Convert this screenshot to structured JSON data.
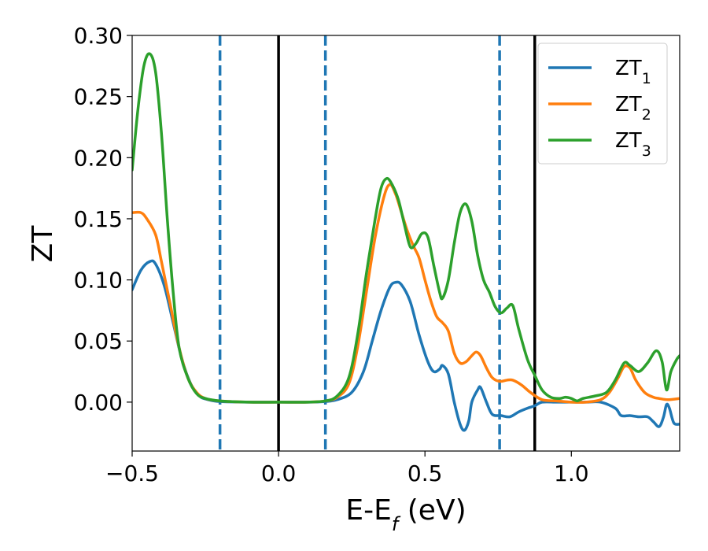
{
  "chart_data": {
    "type": "line",
    "xlabel": "E-E",
    "xlabel_sub": "f",
    "xlabel_unit": " (eV)",
    "ylabel": "ZT",
    "xlim": [
      -0.5,
      1.37
    ],
    "ylim": [
      -0.04,
      0.3
    ],
    "xticks": [
      -0.5,
      0.0,
      0.5,
      1.0
    ],
    "xtick_labels": [
      "−0.5",
      "0.0",
      "0.5",
      "1.0"
    ],
    "yticks": [
      0.0,
      0.05,
      0.1,
      0.15,
      0.2,
      0.25,
      0.3
    ],
    "ytick_labels": [
      "0.00",
      "0.05",
      "0.10",
      "0.15",
      "0.20",
      "0.25",
      "0.30"
    ],
    "grid": false,
    "legend_position": "top-right",
    "vlines_solid": [
      0.0,
      0.875
    ],
    "vlines_dashed": [
      -0.2,
      0.16,
      0.755
    ],
    "vline_colors": {
      "solid": "#000000",
      "dashed": "#1f77b4"
    },
    "series": [
      {
        "name": "ZT",
        "name_sub": "1",
        "color": "#1f77b4",
        "points": [
          [
            -0.5,
            0.092
          ],
          [
            -0.47,
            0.108
          ],
          [
            -0.44,
            0.115
          ],
          [
            -0.42,
            0.113
          ],
          [
            -0.39,
            0.095
          ],
          [
            -0.36,
            0.065
          ],
          [
            -0.33,
            0.035
          ],
          [
            -0.3,
            0.015
          ],
          [
            -0.27,
            0.005
          ],
          [
            -0.24,
            0.002
          ],
          [
            -0.2,
            0.0005
          ],
          [
            -0.1,
            0.0
          ],
          [
            0.0,
            0.0
          ],
          [
            0.1,
            0.0
          ],
          [
            0.16,
            0.0005
          ],
          [
            0.2,
            0.002
          ],
          [
            0.25,
            0.008
          ],
          [
            0.29,
            0.025
          ],
          [
            0.32,
            0.05
          ],
          [
            0.35,
            0.075
          ],
          [
            0.38,
            0.094
          ],
          [
            0.4,
            0.098
          ],
          [
            0.42,
            0.096
          ],
          [
            0.45,
            0.082
          ],
          [
            0.48,
            0.055
          ],
          [
            0.51,
            0.033
          ],
          [
            0.53,
            0.025
          ],
          [
            0.55,
            0.027
          ],
          [
            0.56,
            0.03
          ],
          [
            0.58,
            0.023
          ],
          [
            0.6,
            0.0
          ],
          [
            0.62,
            -0.018
          ],
          [
            0.635,
            -0.023
          ],
          [
            0.65,
            -0.015
          ],
          [
            0.66,
            0.0
          ],
          [
            0.68,
            0.01
          ],
          [
            0.69,
            0.012
          ],
          [
            0.71,
            0.0
          ],
          [
            0.73,
            -0.01
          ],
          [
            0.76,
            -0.011
          ],
          [
            0.79,
            -0.012
          ],
          [
            0.82,
            -0.008
          ],
          [
            0.85,
            -0.005
          ],
          [
            0.875,
            -0.003
          ],
          [
            0.9,
            0.0
          ],
          [
            0.95,
            0.0
          ],
          [
            1.0,
            0.0
          ],
          [
            1.05,
            0.0
          ],
          [
            1.1,
            0.0
          ],
          [
            1.15,
            -0.005
          ],
          [
            1.17,
            -0.011
          ],
          [
            1.2,
            -0.011
          ],
          [
            1.23,
            -0.012
          ],
          [
            1.26,
            -0.012
          ],
          [
            1.28,
            -0.016
          ],
          [
            1.3,
            -0.02
          ],
          [
            1.315,
            -0.012
          ],
          [
            1.325,
            -0.002
          ],
          [
            1.335,
            -0.005
          ],
          [
            1.35,
            -0.017
          ],
          [
            1.37,
            -0.018
          ]
        ]
      },
      {
        "name": "ZT",
        "name_sub": "2",
        "color": "#ff7f0e",
        "points": [
          [
            -0.5,
            0.155
          ],
          [
            -0.47,
            0.155
          ],
          [
            -0.45,
            0.15
          ],
          [
            -0.42,
            0.137
          ],
          [
            -0.4,
            0.115
          ],
          [
            -0.37,
            0.08
          ],
          [
            -0.34,
            0.045
          ],
          [
            -0.31,
            0.02
          ],
          [
            -0.28,
            0.008
          ],
          [
            -0.25,
            0.003
          ],
          [
            -0.2,
            0.001
          ],
          [
            -0.1,
            0.0
          ],
          [
            0.0,
            0.0
          ],
          [
            0.1,
            0.0
          ],
          [
            0.16,
            0.001
          ],
          [
            0.2,
            0.004
          ],
          [
            0.24,
            0.015
          ],
          [
            0.27,
            0.045
          ],
          [
            0.3,
            0.09
          ],
          [
            0.33,
            0.135
          ],
          [
            0.36,
            0.168
          ],
          [
            0.38,
            0.178
          ],
          [
            0.4,
            0.17
          ],
          [
            0.42,
            0.155
          ],
          [
            0.44,
            0.14
          ],
          [
            0.46,
            0.128
          ],
          [
            0.48,
            0.118
          ],
          [
            0.5,
            0.1
          ],
          [
            0.52,
            0.083
          ],
          [
            0.54,
            0.07
          ],
          [
            0.56,
            0.065
          ],
          [
            0.58,
            0.058
          ],
          [
            0.6,
            0.04
          ],
          [
            0.62,
            0.032
          ],
          [
            0.64,
            0.033
          ],
          [
            0.66,
            0.038
          ],
          [
            0.675,
            0.041
          ],
          [
            0.69,
            0.038
          ],
          [
            0.71,
            0.028
          ],
          [
            0.73,
            0.02
          ],
          [
            0.755,
            0.017
          ],
          [
            0.78,
            0.018
          ],
          [
            0.8,
            0.018
          ],
          [
            0.83,
            0.014
          ],
          [
            0.86,
            0.008
          ],
          [
            0.9,
            0.002
          ],
          [
            0.95,
            0.001
          ],
          [
            1.0,
            0.0
          ],
          [
            1.05,
            0.0
          ],
          [
            1.1,
            0.002
          ],
          [
            1.13,
            0.008
          ],
          [
            1.16,
            0.02
          ],
          [
            1.18,
            0.029
          ],
          [
            1.2,
            0.028
          ],
          [
            1.22,
            0.018
          ],
          [
            1.25,
            0.008
          ],
          [
            1.28,
            0.004
          ],
          [
            1.3,
            0.003
          ],
          [
            1.33,
            0.002
          ],
          [
            1.37,
            0.003
          ]
        ]
      },
      {
        "name": "ZT",
        "name_sub": "3",
        "color": "#2ca02c",
        "points": [
          [
            -0.5,
            0.19
          ],
          [
            -0.48,
            0.24
          ],
          [
            -0.46,
            0.275
          ],
          [
            -0.44,
            0.285
          ],
          [
            -0.42,
            0.27
          ],
          [
            -0.4,
            0.22
          ],
          [
            -0.38,
            0.15
          ],
          [
            -0.36,
            0.09
          ],
          [
            -0.34,
            0.045
          ],
          [
            -0.31,
            0.02
          ],
          [
            -0.28,
            0.007
          ],
          [
            -0.25,
            0.003
          ],
          [
            -0.2,
            0.001
          ],
          [
            -0.1,
            0.0
          ],
          [
            0.0,
            0.0
          ],
          [
            0.1,
            0.0
          ],
          [
            0.16,
            0.001
          ],
          [
            0.2,
            0.005
          ],
          [
            0.24,
            0.02
          ],
          [
            0.27,
            0.055
          ],
          [
            0.3,
            0.105
          ],
          [
            0.33,
            0.15
          ],
          [
            0.35,
            0.175
          ],
          [
            0.37,
            0.183
          ],
          [
            0.39,
            0.177
          ],
          [
            0.41,
            0.165
          ],
          [
            0.43,
            0.145
          ],
          [
            0.45,
            0.127
          ],
          [
            0.47,
            0.13
          ],
          [
            0.49,
            0.138
          ],
          [
            0.51,
            0.135
          ],
          [
            0.53,
            0.112
          ],
          [
            0.55,
            0.09
          ],
          [
            0.56,
            0.085
          ],
          [
            0.58,
            0.1
          ],
          [
            0.6,
            0.13
          ],
          [
            0.62,
            0.155
          ],
          [
            0.64,
            0.162
          ],
          [
            0.66,
            0.148
          ],
          [
            0.68,
            0.12
          ],
          [
            0.7,
            0.1
          ],
          [
            0.72,
            0.09
          ],
          [
            0.74,
            0.078
          ],
          [
            0.76,
            0.073
          ],
          [
            0.78,
            0.077
          ],
          [
            0.8,
            0.079
          ],
          [
            0.82,
            0.06
          ],
          [
            0.85,
            0.035
          ],
          [
            0.875,
            0.022
          ],
          [
            0.9,
            0.01
          ],
          [
            0.93,
            0.004
          ],
          [
            0.96,
            0.003
          ],
          [
            0.98,
            0.004
          ],
          [
            1.0,
            0.003
          ],
          [
            1.02,
            0.001
          ],
          [
            1.04,
            0.003
          ],
          [
            1.08,
            0.005
          ],
          [
            1.12,
            0.008
          ],
          [
            1.15,
            0.018
          ],
          [
            1.18,
            0.032
          ],
          [
            1.2,
            0.03
          ],
          [
            1.23,
            0.025
          ],
          [
            1.26,
            0.032
          ],
          [
            1.29,
            0.042
          ],
          [
            1.31,
            0.033
          ],
          [
            1.325,
            0.01
          ],
          [
            1.34,
            0.025
          ],
          [
            1.36,
            0.035
          ],
          [
            1.37,
            0.038
          ]
        ]
      }
    ]
  }
}
